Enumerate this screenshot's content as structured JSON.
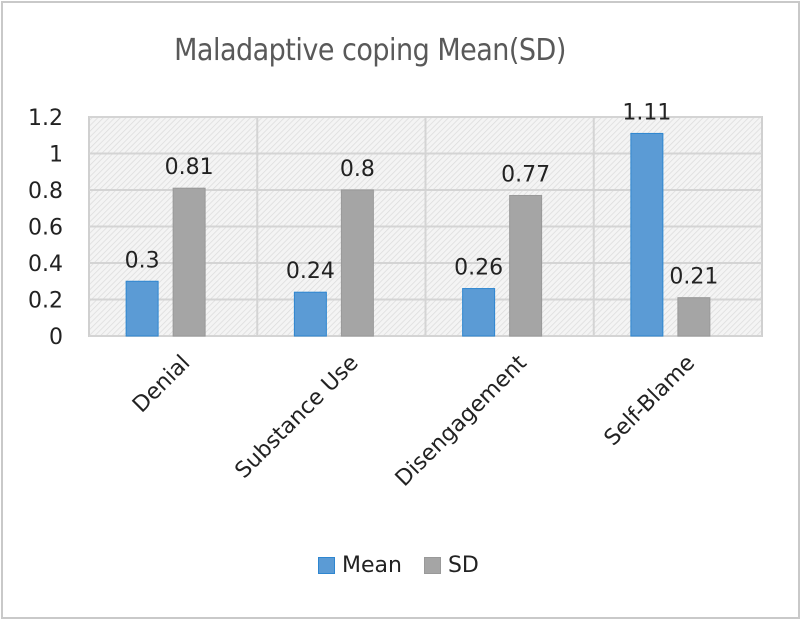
{
  "chart_data": {
    "type": "bar",
    "title": "Maladaptive coping Mean(SD)",
    "categories": [
      "Denial",
      "Substance Use",
      "Disengagement",
      "Self-Blame"
    ],
    "series": [
      {
        "name": "Mean",
        "color": "#5b9bd5",
        "values": [
          0.3,
          0.24,
          0.26,
          1.11
        ],
        "labels": [
          "0.3",
          "0.24",
          "0.26",
          "1.11"
        ]
      },
      {
        "name": "SD",
        "color": "#a5a5a5",
        "values": [
          0.81,
          0.8,
          0.77,
          0.21
        ],
        "labels": [
          "0.81",
          "0.8",
          "0.77",
          "0.21"
        ]
      }
    ],
    "xlabel": "",
    "ylabel": "",
    "ylim": [
      0,
      1.2
    ],
    "yticks": [
      "0",
      "0.2",
      "0.4",
      "0.6",
      "0.8",
      "1",
      "1.2"
    ],
    "grid": true,
    "legend": "bottom"
  }
}
